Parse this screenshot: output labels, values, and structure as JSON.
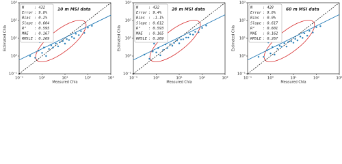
{
  "chart_data": [
    {
      "type": "scatter",
      "title": "10 m MSI data",
      "x_label": "Measured Chla",
      "y_label": "Estimated Chla",
      "xlim": [
        0.1,
        1000
      ],
      "ylim": [
        0.1,
        1000
      ],
      "log_x": true,
      "log_y": true,
      "color": "#1f77b4",
      "fit_color": "#1f77b4",
      "xticks": [
        {
          "value": 0.1,
          "label": "10⁻¹"
        },
        {
          "value": 1,
          "label": "10⁰"
        },
        {
          "value": 10,
          "label": "10¹"
        },
        {
          "value": 100,
          "label": "10²"
        },
        {
          "value": 1000,
          "label": "10³"
        }
      ],
      "yticks": [
        {
          "value": 0.1,
          "label": "10⁻¹"
        },
        {
          "value": 1,
          "label": "10⁰"
        },
        {
          "value": 10,
          "label": "10¹"
        },
        {
          "value": 100,
          "label": "10²"
        },
        {
          "value": 1000,
          "label": "10³"
        }
      ],
      "x": [
        0.3,
        0.5,
        0.7,
        1,
        1.2,
        1.5,
        2,
        2.5,
        3,
        4,
        5,
        6,
        8,
        10,
        12,
        15,
        20,
        25,
        30,
        40,
        50,
        70,
        100,
        150,
        0.8
      ],
      "values": [
        1,
        0.8,
        2,
        1.5,
        3,
        1,
        2.5,
        4,
        3,
        5,
        3.5,
        6,
        7,
        5,
        9,
        8,
        12,
        10,
        18,
        15,
        25,
        20,
        40,
        50,
        6
      ],
      "fit_x": [
        0.1,
        1000
      ],
      "fit_y": [
        0.6,
        200
      ],
      "stats": [
        {
          "label": "N",
          "value": ": 432"
        },
        {
          "label": "Error",
          "value": ": 9.8%"
        },
        {
          "label": "Bias",
          "value": ": 0.2%"
        },
        {
          "label": "Slope",
          "value": ": 0.604"
        },
        {
          "label": "R²",
          "value": ": 0.595"
        },
        {
          "label": "MAE",
          "value": ": 0.167"
        },
        {
          "label": "RMSLE",
          "value": ": 0.269"
        }
      ]
    },
    {
      "type": "scatter",
      "title": "20 m MSI data",
      "x_label": "Measured Chla",
      "y_label": "Estimated Chla",
      "xlim": [
        0.1,
        1000
      ],
      "ylim": [
        0.1,
        1000
      ],
      "log_x": true,
      "log_y": true,
      "color": "#1f77b4",
      "fit_color": "#1f77b4",
      "xticks": [
        {
          "value": 0.1,
          "label": "10⁻¹"
        },
        {
          "value": 1,
          "label": "10⁰"
        },
        {
          "value": 10,
          "label": "10¹"
        },
        {
          "value": 100,
          "label": "10²"
        },
        {
          "value": 1000,
          "label": "10³"
        }
      ],
      "yticks": [
        {
          "value": 0.1,
          "label": "10⁻¹"
        },
        {
          "value": 1,
          "label": "10⁰"
        },
        {
          "value": 10,
          "label": "10¹"
        },
        {
          "value": 100,
          "label": "10²"
        },
        {
          "value": 1000,
          "label": "10³"
        }
      ],
      "x": [
        0.3,
        0.5,
        0.7,
        1,
        1.2,
        1.5,
        2,
        2.5,
        3,
        4,
        5,
        6,
        8,
        10,
        12,
        15,
        20,
        25,
        30,
        40,
        50,
        70,
        100,
        150,
        0.8
      ],
      "values": [
        1.2,
        0.7,
        1.8,
        1.6,
        2.8,
        1.1,
        2.2,
        4.5,
        2.8,
        4.6,
        3.8,
        5.5,
        7.5,
        5.2,
        8.5,
        8.8,
        11,
        11,
        17,
        16,
        23,
        22,
        38,
        52,
        5
      ],
      "fit_x": [
        0.1,
        1000
      ],
      "fit_y": [
        0.6,
        210
      ],
      "stats": [
        {
          "label": "N",
          "value": ": 432"
        },
        {
          "label": "Error",
          "value": ": 9.4%"
        },
        {
          "label": "Bias",
          "value": ": -1.1%"
        },
        {
          "label": "Slope",
          "value": ": 0.612"
        },
        {
          "label": "R²",
          "value": ": 0.593"
        },
        {
          "label": "MAE",
          "value": ": 0.165"
        },
        {
          "label": "RMSLE",
          "value": ": 0.269"
        }
      ]
    },
    {
      "type": "scatter",
      "title": "60 m MSI data",
      "x_label": "Measured Chla",
      "y_label": "Estimated Chla",
      "xlim": [
        0.1,
        1000
      ],
      "ylim": [
        0.1,
        1000
      ],
      "log_x": true,
      "log_y": true,
      "color": "#1f77b4",
      "fit_color": "#1f77b4",
      "xticks": [
        {
          "value": 0.1,
          "label": "10⁻¹"
        },
        {
          "value": 1,
          "label": "10⁰"
        },
        {
          "value": 10,
          "label": "10¹"
        },
        {
          "value": 100,
          "label": "10²"
        },
        {
          "value": 1000,
          "label": "10³"
        }
      ],
      "yticks": [
        {
          "value": 0.1,
          "label": "10⁻¹"
        },
        {
          "value": 1,
          "label": "10⁰"
        },
        {
          "value": 10,
          "label": "10¹"
        },
        {
          "value": 100,
          "label": "10²"
        },
        {
          "value": 1000,
          "label": "10³"
        }
      ],
      "x": [
        0.3,
        0.5,
        0.7,
        1,
        1.2,
        1.5,
        2,
        2.5,
        3,
        4,
        5,
        6,
        8,
        10,
        12,
        15,
        20,
        25,
        30,
        40,
        50,
        70,
        100,
        150,
        0.8
      ],
      "values": [
        0.9,
        0.9,
        2.1,
        1.4,
        3.2,
        1.2,
        2.6,
        3.8,
        3.3,
        5.2,
        3.4,
        6.2,
        6.8,
        5.6,
        9.2,
        7.6,
        12.5,
        10.5,
        19,
        14,
        26,
        21,
        42,
        48,
        5.8
      ],
      "fit_x": [
        0.1,
        1000
      ],
      "fit_y": [
        0.6,
        215
      ],
      "stats": [
        {
          "label": "N",
          "value": ": 428"
        },
        {
          "label": "Error",
          "value": ": 9.8%"
        },
        {
          "label": "Bias",
          "value": ": 0.0%"
        },
        {
          "label": "Slope",
          "value": ": 0.617"
        },
        {
          "label": "R²",
          "value": ": 0.601"
        },
        {
          "label": "MAE",
          "value": ": 0.162"
        },
        {
          "label": "RMSLE",
          "value": ": 0.267"
        }
      ]
    }
  ]
}
